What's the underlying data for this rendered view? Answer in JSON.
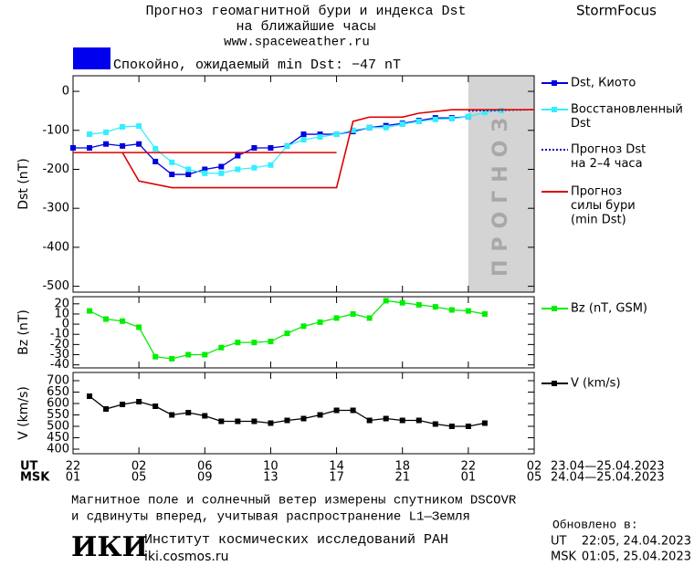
{
  "header": {
    "title": "Прогноз геомагнитной бури и индекса Dst",
    "subtitle": "на ближайшие часы",
    "url": "www.spaceweather.ru",
    "brand": "StormFocus"
  },
  "status": {
    "text": "Спокойно, ожидаемый min Dst: −47 nT",
    "color": "#0000ee"
  },
  "chart_data": [
    {
      "type": "line",
      "ylabel": "Dst (nT)",
      "xlim": [
        0,
        28
      ],
      "ylim": [
        -515,
        40
      ],
      "yticks": [
        0,
        -100,
        -200,
        -300,
        -400,
        -500
      ],
      "forecast_span": [
        24,
        28
      ],
      "forecast_label": "ПРОГНОЗ",
      "series": [
        {
          "name": [
            "Dst, Киото"
          ],
          "color": "#0000dd",
          "marker": "square",
          "x": [
            0,
            1,
            2,
            3,
            4,
            5,
            6,
            7,
            8,
            9,
            10,
            11,
            12,
            13,
            14,
            15,
            16,
            17,
            18,
            19,
            20,
            21,
            22,
            23,
            24
          ],
          "values": [
            -145,
            -145,
            -135,
            -140,
            -135,
            -180,
            -213,
            -213,
            -200,
            -193,
            -165,
            -145,
            -145,
            -140,
            -110,
            -110,
            -110,
            -103,
            -93,
            -88,
            -82,
            -75,
            -68,
            -68,
            -65
          ]
        },
        {
          "name": [
            "Восстановленный",
            "Dst"
          ],
          "color": "#33eeff",
          "marker": "square",
          "x": [
            1,
            2,
            3,
            4,
            5,
            6,
            7,
            8,
            9,
            10,
            11,
            12,
            13,
            14,
            15,
            16,
            17,
            18,
            19,
            20,
            21,
            22,
            23,
            24,
            25,
            26
          ],
          "values": [
            -110,
            -105,
            -91,
            -89,
            -147,
            -182,
            -200,
            -210,
            -210,
            -200,
            -196,
            -189,
            -140,
            -124,
            -117,
            -110,
            -100,
            -93,
            -93,
            -84,
            -77,
            -72,
            -70,
            -65,
            -54,
            -49
          ]
        },
        {
          "name": [
            "Прогноз Dst",
            "на 2–4 часа"
          ],
          "color": "#0000aa",
          "linestyle": "dotted",
          "x": [
            24,
            28
          ],
          "values": [
            -50,
            -47
          ]
        },
        {
          "name": [
            "Прогноз",
            "силы бури",
            "(min Dst)"
          ],
          "color": "#dd0000",
          "x": [
            0,
            16,
            null,
            0,
            3,
            4,
            6,
            16,
            17,
            18,
            20,
            21,
            23,
            28
          ],
          "values": [
            -157,
            -157,
            null,
            -157,
            -157,
            -230,
            -247,
            -247,
            -77,
            -66,
            -66,
            -56,
            -47,
            -47
          ]
        }
      ]
    },
    {
      "type": "line",
      "ylabel": "Bz (nT)",
      "xlim": [
        0,
        28
      ],
      "ylim": [
        -43,
        27
      ],
      "yticks": [
        20,
        10,
        0,
        -10,
        -20,
        -30,
        -40
      ],
      "series": [
        {
          "name": [
            "Bz (nT, GSM)"
          ],
          "color": "#00ee00",
          "marker": "square",
          "x": [
            1,
            2,
            3,
            4,
            5,
            6,
            7,
            8,
            9,
            10,
            11,
            12,
            13,
            14,
            15,
            16,
            17,
            18,
            19,
            20,
            21,
            22,
            23,
            24,
            25
          ],
          "values": [
            13,
            5,
            3,
            -3,
            -32,
            -34,
            -30,
            -30,
            -23,
            -18,
            -18,
            -17,
            -9,
            -2,
            2,
            6,
            10,
            6,
            23,
            21,
            19,
            17,
            14,
            13,
            10
          ]
        }
      ]
    },
    {
      "type": "line",
      "ylabel": "V (km/s)",
      "xlim": [
        0,
        28
      ],
      "ylim": [
        380,
        736
      ],
      "yticks": [
        700,
        650,
        600,
        550,
        500,
        450,
        400
      ],
      "series": [
        {
          "name": [
            "V (km/s)"
          ],
          "color": "#000000",
          "marker": "square",
          "x": [
            1,
            2,
            3,
            4,
            5,
            6,
            7,
            8,
            9,
            10,
            11,
            12,
            13,
            14,
            15,
            16,
            17,
            18,
            19,
            20,
            21,
            22,
            23,
            24,
            25
          ],
          "values": [
            632,
            576,
            596,
            608,
            588,
            550,
            560,
            546,
            522,
            522,
            522,
            514,
            526,
            534,
            550,
            570,
            570,
            526,
            534,
            526,
            526,
            510,
            500,
            500,
            514
          ]
        }
      ],
      "xlabel": "UT",
      "xrange_label": "23.04—25.04.2023",
      "xticks": [
        {
          "value": 0,
          "label": "22"
        },
        {
          "value": 4,
          "label": "02"
        },
        {
          "value": 8,
          "label": "06"
        },
        {
          "value": 12,
          "label": "10"
        },
        {
          "value": 16,
          "label": "14"
        },
        {
          "value": 20,
          "label": "18"
        },
        {
          "value": 24,
          "label": "22"
        },
        {
          "value": 28,
          "label": "02"
        }
      ],
      "x2label": "MSK",
      "x2range_label": "24.04—25.04.2023",
      "x2ticks": [
        {
          "value": 0,
          "label": "01"
        },
        {
          "value": 4,
          "label": "05"
        },
        {
          "value": 8,
          "label": "09"
        },
        {
          "value": 12,
          "label": "13"
        },
        {
          "value": 16,
          "label": "17"
        },
        {
          "value": 20,
          "label": "21"
        },
        {
          "value": 24,
          "label": "01"
        },
        {
          "value": 28,
          "label": "05"
        }
      ]
    }
  ],
  "footer": {
    "note": [
      "Магнитное поле и солнечный ветер измерены спутником DSCOVR",
      "и сдвинуты вперед, учитывая распространение L1—Земля"
    ],
    "logo": "ИКИ",
    "institute": "Институт космических исследований РАН",
    "site": "iki.cosmos.ru",
    "updated_label": "Обновлено в:",
    "updated": [
      {
        "zone": "UT",
        "time": "22:05, 24.04.2023"
      },
      {
        "zone": "MSK",
        "time": "01:05, 25.04.2023"
      }
    ]
  }
}
